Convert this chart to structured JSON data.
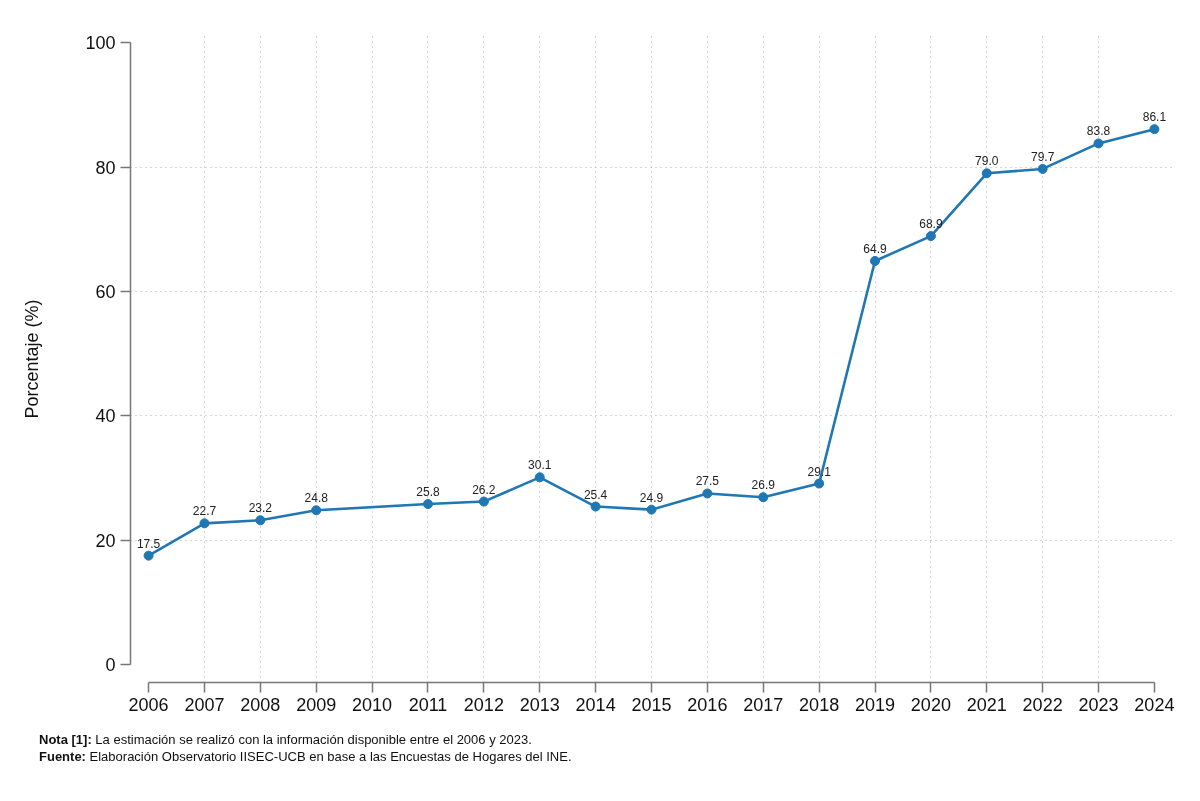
{
  "chart_data": {
    "type": "line",
    "ylabel": "Porcentaje (%)",
    "x": [
      2006,
      2007,
      2008,
      2009,
      2011,
      2012,
      2013,
      2014,
      2015,
      2016,
      2017,
      2018,
      2019,
      2020,
      2021,
      2022,
      2023,
      2024
    ],
    "series": [
      {
        "color": "#1f77b4",
        "values": [
          17.5,
          22.7,
          23.2,
          24.8,
          25.8,
          26.2,
          30.1,
          25.4,
          24.9,
          27.5,
          26.9,
          29.1,
          64.9,
          68.9,
          79.0,
          79.7,
          83.8,
          86.1
        ],
        "value_labels": [
          "17.5",
          "22.7",
          "23.2",
          "24.8",
          "25.8",
          "26.2",
          "30.1",
          "25.4",
          "24.9",
          "27.5",
          "26.9",
          "29.1",
          "64.9",
          "68.9",
          "79.0",
          "79.7",
          "83.8",
          "86.1"
        ]
      }
    ],
    "xlim": [
      2006,
      2024
    ],
    "xticks": [
      2006,
      2007,
      2008,
      2009,
      2010,
      2011,
      2012,
      2013,
      2014,
      2015,
      2016,
      2017,
      2018,
      2019,
      2020,
      2021,
      2022,
      2023,
      2024
    ],
    "ylim": [
      0,
      100
    ],
    "yticks": [
      0,
      20,
      40,
      60,
      80,
      100
    ],
    "grid": true,
    "marker": "circle",
    "line_style": "solid",
    "annotations": [
      "Nota [1]: La estimación se realizó con la información disponible entre el 2006 y 2023.",
      "Fuente: Elaboración Observatorio IISEC-UCB en base a las Encuestas de Hogares del INE."
    ]
  }
}
